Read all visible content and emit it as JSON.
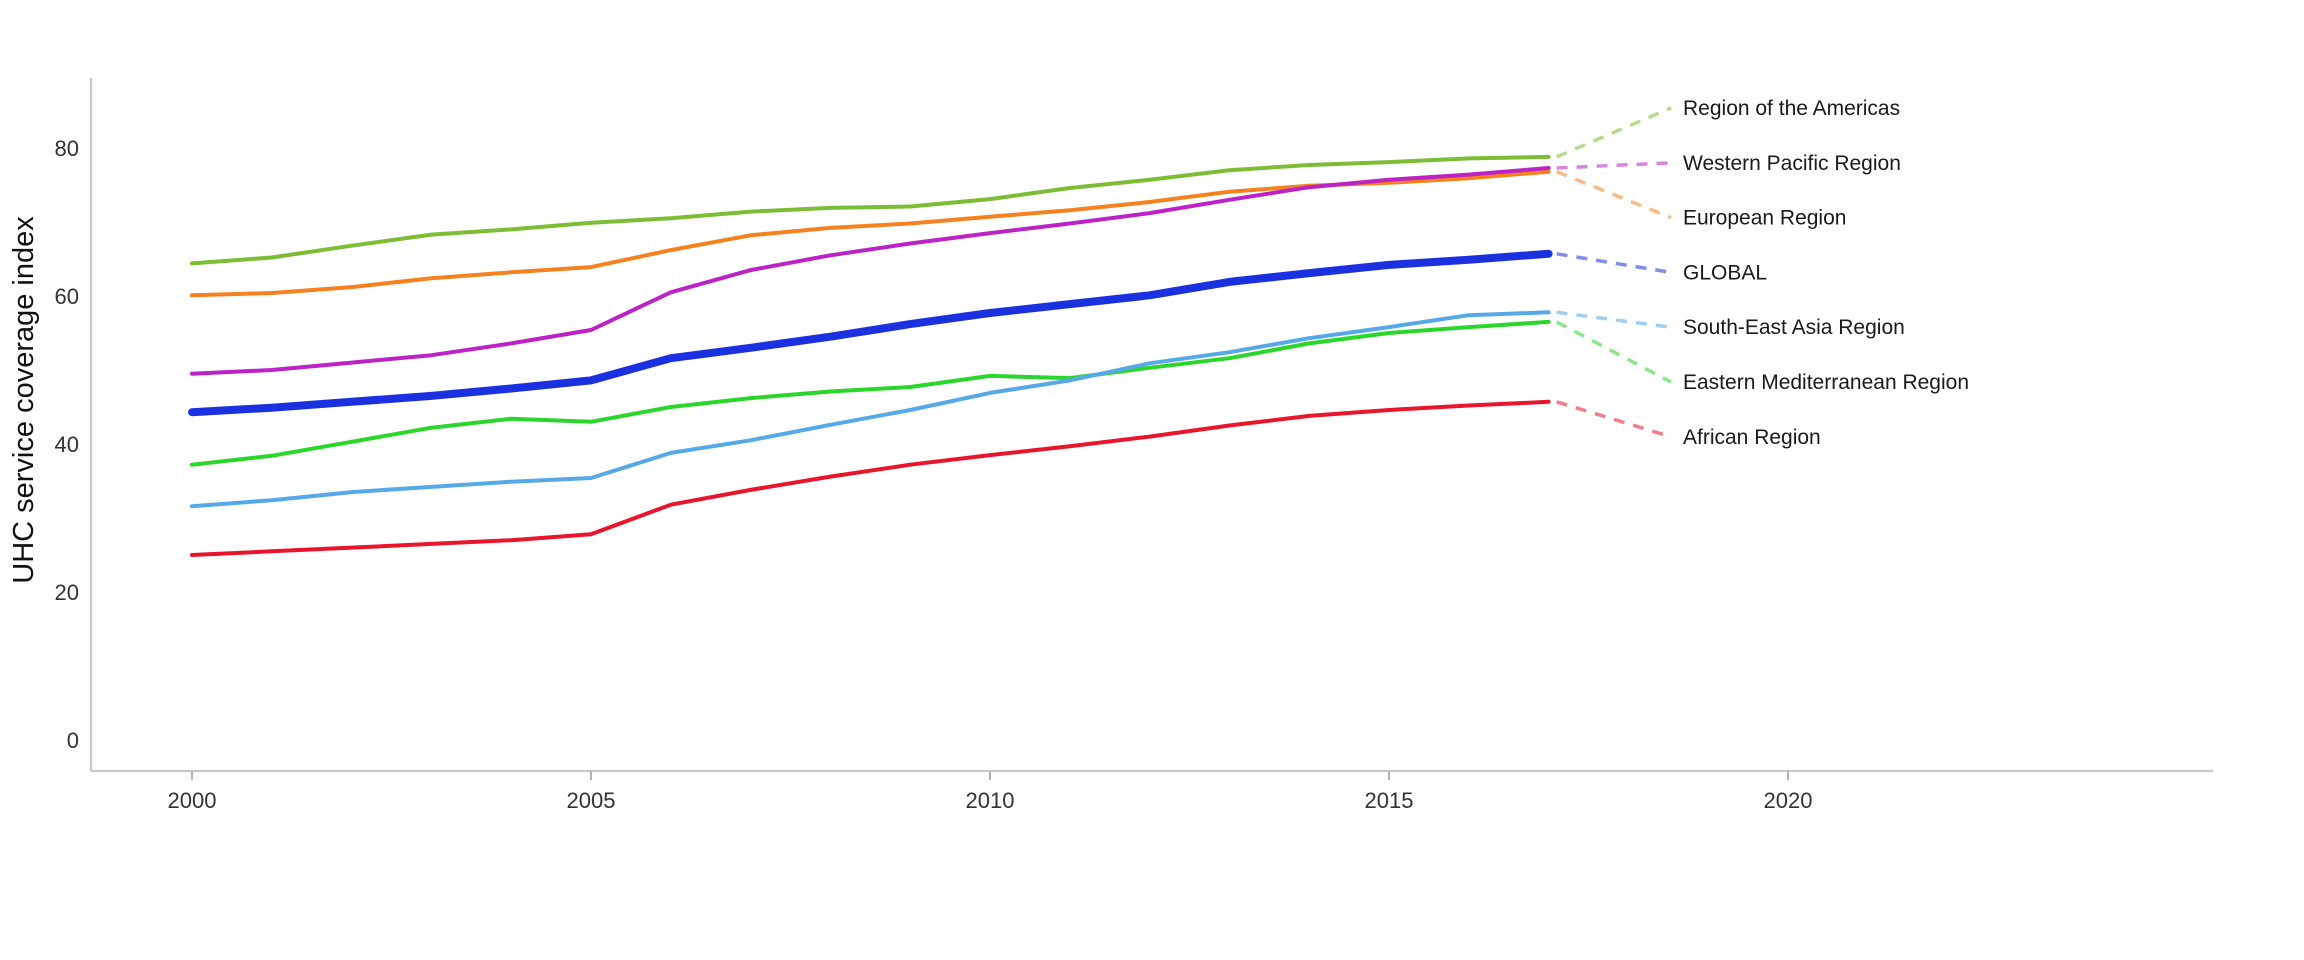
{
  "chart_data": {
    "type": "line",
    "title": "",
    "xlabel": "",
    "ylabel": "UHC service coverage index",
    "x_tick_labels": [
      "2000",
      "2005",
      "2010",
      "2015",
      "2020"
    ],
    "x_tick_values": [
      2000,
      2005,
      2010,
      2015,
      2020
    ],
    "y_tick_labels": [
      "0",
      "20",
      "40",
      "60",
      "80"
    ],
    "y_tick_values": [
      0,
      20,
      40,
      60,
      80
    ],
    "xlim": [
      1998.7,
      2025.3
    ],
    "ylim": [
      -4.2,
      89.5
    ],
    "grid": false,
    "legend_position": "right-end-labels",
    "x": [
      2000,
      2001,
      2002,
      2003,
      2004,
      2005,
      2006,
      2007,
      2008,
      2009,
      2010,
      2011,
      2012,
      2013,
      2014,
      2015,
      2016,
      2017
    ],
    "series": [
      {
        "name": "Region of the Americas",
        "color": "#7CBE33",
        "line_width": 4,
        "values": [
          64.4,
          65.2,
          66.8,
          68.3,
          69.0,
          69.9,
          70.5,
          71.4,
          71.9,
          72.1,
          73.1,
          74.6,
          75.7,
          77.0,
          77.7,
          78.1,
          78.6,
          78.8
        ]
      },
      {
        "name": "Western Pacific Region",
        "color": "#BC22C6",
        "line_width": 4,
        "values": [
          49.5,
          50.0,
          51.0,
          52.0,
          53.6,
          55.4,
          60.5,
          63.5,
          65.5,
          67.1,
          68.5,
          69.8,
          71.2,
          73.0,
          74.7,
          75.7,
          76.4,
          77.3
        ]
      },
      {
        "name": "European Region",
        "color": "#F5821F",
        "line_width": 4,
        "values": [
          60.1,
          60.4,
          61.2,
          62.4,
          63.2,
          63.9,
          66.2,
          68.2,
          69.2,
          69.8,
          70.7,
          71.6,
          72.7,
          74.1,
          74.9,
          75.3,
          75.9,
          76.8
        ]
      },
      {
        "name": "GLOBAL",
        "color": "#1B31E0",
        "line_width": 8,
        "values": [
          44.3,
          44.9,
          45.7,
          46.5,
          47.5,
          48.6,
          51.6,
          53.0,
          54.5,
          56.2,
          57.7,
          58.9,
          60.1,
          61.9,
          63.1,
          64.2,
          64.9,
          65.7
        ]
      },
      {
        "name": "South-East Asia Region",
        "color": "#55A9E8",
        "line_width": 4,
        "values": [
          31.6,
          32.4,
          33.5,
          34.2,
          34.9,
          35.4,
          38.8,
          40.5,
          42.6,
          44.6,
          46.9,
          48.6,
          50.9,
          52.4,
          54.3,
          55.8,
          57.4,
          57.8
        ]
      },
      {
        "name": "Eastern Mediterranean Region",
        "color": "#2BD62B",
        "line_width": 4,
        "values": [
          37.2,
          38.4,
          40.3,
          42.2,
          43.4,
          43.0,
          45.0,
          46.2,
          47.1,
          47.7,
          49.2,
          48.9,
          50.3,
          51.6,
          53.6,
          55.0,
          55.8,
          56.5
        ]
      },
      {
        "name": "African Region",
        "color": "#E8152B",
        "line_width": 4,
        "values": [
          25.0,
          25.5,
          26.0,
          26.5,
          27.0,
          27.8,
          31.8,
          33.8,
          35.6,
          37.2,
          38.5,
          39.7,
          41.0,
          42.5,
          43.8,
          44.6,
          45.2,
          45.7
        ]
      }
    ],
    "style_colors": {
      "axis_spine": "#c9c9c9",
      "tick_mark": "#b3b3b3",
      "tick_label": "#333333",
      "series_label": "#1a1a1a",
      "background": "#ffffff"
    }
  }
}
